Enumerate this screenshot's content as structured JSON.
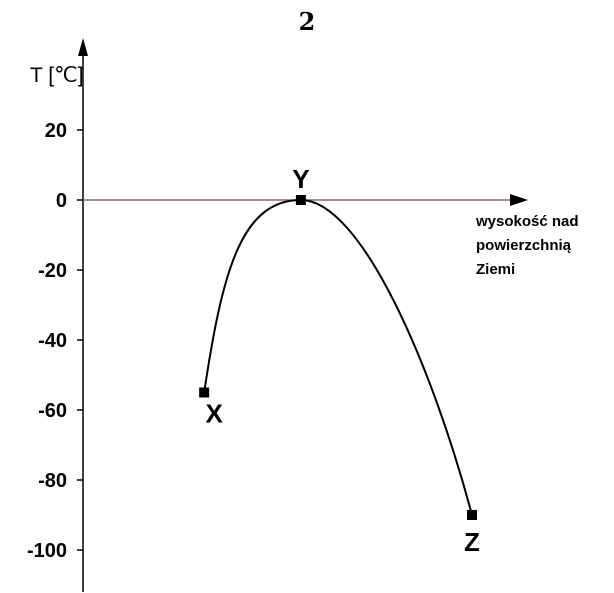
{
  "page_number": "2",
  "chart_data": {
    "type": "line",
    "title": "",
    "ylabel": "T [℃]",
    "xlabel_lines": [
      "wysokość nad",
      "powierzchnią",
      "Ziemi"
    ],
    "ylim": [
      -110,
      30
    ],
    "yticks": [
      20,
      0,
      -20,
      -40,
      -60,
      -80,
      -100
    ],
    "x_values_shown": false,
    "points": [
      {
        "label": "X",
        "x": 0.28,
        "y": -55
      },
      {
        "label": "Y",
        "x": 0.54,
        "y": 0
      },
      {
        "label": "Z",
        "x": 1.0,
        "y": -90
      }
    ],
    "grid": false,
    "legend": "none",
    "line_color": "#000000",
    "zero_line_color": "#8a6a6a"
  }
}
